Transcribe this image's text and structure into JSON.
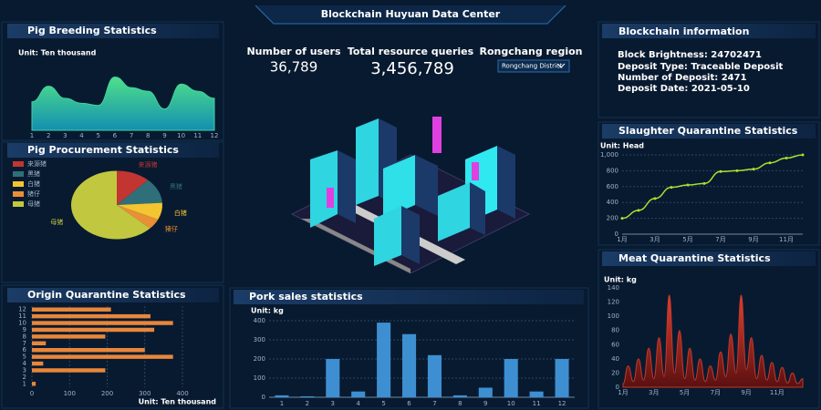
{
  "header": {
    "title": "Blockchain Huyuan Data Center"
  },
  "stats": [
    {
      "label": "Number of users",
      "value": "36,789"
    },
    {
      "label": "Total resource queries",
      "value": "3,456,789"
    }
  ],
  "region": {
    "label": "Rongchang region",
    "selected": "Rongchang District"
  },
  "blockchain": {
    "title": "Blockchain information",
    "lines": [
      "Block Brightness: 24702471",
      "Deposit Type: Traceable Deposit",
      "Number of Deposit: 2471",
      "Deposit Date: 2021-05-10"
    ]
  },
  "chart_data": [
    {
      "type": "area",
      "title": "Pig Breeding Statistics",
      "unit": "Unit: Ten thousand",
      "categories": [
        "1",
        "2",
        "3",
        "4",
        "5",
        "6",
        "7",
        "8",
        "9",
        "10",
        "11",
        "12"
      ],
      "values": [
        40,
        62,
        45,
        38,
        35,
        75,
        60,
        55,
        30,
        65,
        55,
        45
      ],
      "ylim": [
        0,
        100
      ],
      "color": "#3fd3a0"
    },
    {
      "type": "pie",
      "title": "Pig Procurement Statistics",
      "categories": [
        "来源猪",
        "黑猪",
        "白猪",
        "猪仔",
        "母猪"
      ],
      "values": [
        12,
        12,
        8,
        5,
        63
      ],
      "colors": [
        "#c23531",
        "#2f6f7a",
        "#f3c530",
        "#e98f36",
        "#c1c83f"
      ]
    },
    {
      "type": "bar",
      "orientation": "horizontal",
      "title": "Origin Quarantine Statistics",
      "unit": "Unit: Ten thousand",
      "categories": [
        "1",
        "2",
        "3",
        "4",
        "5",
        "6",
        "7",
        "8",
        "9",
        "10",
        "11",
        "12"
      ],
      "values": [
        10,
        0,
        195,
        30,
        375,
        300,
        37,
        195,
        325,
        375,
        315,
        210
      ],
      "xlim": [
        0,
        400
      ],
      "xticks": [
        0,
        100,
        200,
        300,
        400
      ],
      "grid": true,
      "color": "#e8873a"
    },
    {
      "type": "bar",
      "title": "Pork sales statistics",
      "unit": "Unit: kg",
      "categories": [
        "1",
        "2",
        "3",
        "4",
        "5",
        "6",
        "7",
        "8",
        "9",
        "10",
        "11",
        "12"
      ],
      "values": [
        10,
        5,
        200,
        30,
        390,
        330,
        220,
        10,
        50,
        200,
        30,
        200
      ],
      "ylim": [
        0,
        400
      ],
      "yticks": [
        0,
        100,
        200,
        300,
        400
      ],
      "grid": true,
      "color": "#3d8fd1"
    },
    {
      "type": "line",
      "title": "Slaughter Quarantine Statistics",
      "unit": "Unit: Head",
      "categories": [
        "1月",
        null,
        "3月",
        null,
        "5月",
        null,
        "7月",
        null,
        "9月",
        null,
        "11月",
        null
      ],
      "values": [
        200,
        300,
        450,
        590,
        620,
        640,
        790,
        800,
        820,
        900,
        960,
        1000
      ],
      "ylim": [
        0,
        1000
      ],
      "yticks": [
        0,
        200,
        400,
        600,
        800,
        {
          "value": 1000,
          "label": "1,000"
        }
      ],
      "grid": true,
      "color": "#a6e22e"
    },
    {
      "type": "area",
      "title": "Meat Quarantine Statistics",
      "unit": "Unit: kg",
      "categories": [
        "1月",
        null,
        null,
        null,
        null,
        null,
        "3月",
        null,
        null,
        null,
        null,
        null,
        "5月",
        null,
        null,
        null,
        null,
        null,
        "7月",
        null,
        null,
        null,
        null,
        null,
        "9月",
        null,
        null,
        null,
        null,
        null,
        "11月",
        null,
        null,
        null,
        null,
        null
      ],
      "values": [
        5,
        30,
        8,
        40,
        10,
        55,
        12,
        70,
        15,
        130,
        20,
        80,
        12,
        55,
        10,
        40,
        8,
        30,
        10,
        50,
        15,
        75,
        20,
        130,
        25,
        70,
        12,
        45,
        10,
        35,
        8,
        28,
        6,
        20,
        5,
        12
      ],
      "ylim": [
        0,
        140
      ],
      "yticks": [
        0,
        20,
        40,
        60,
        80,
        100,
        120,
        140
      ],
      "color": "#c0392b"
    }
  ]
}
